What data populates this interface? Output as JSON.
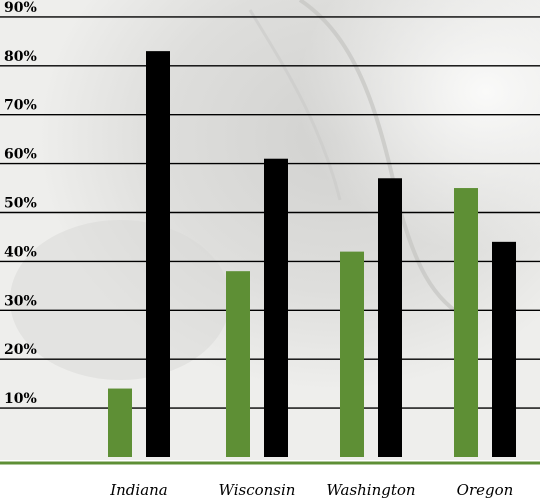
{
  "chart_data": {
    "type": "bar",
    "title": "",
    "xlabel": "",
    "ylabel": "",
    "categories": [
      "Indiana",
      "Wisconsin",
      "Washington",
      "Oregon"
    ],
    "series": [
      {
        "color": "#5e8f35",
        "values": [
          14,
          38,
          42,
          55
        ]
      },
      {
        "color": "#000000",
        "values": [
          83,
          61,
          57,
          44
        ]
      }
    ],
    "y_ticks": [
      "10%",
      "20%",
      "30%",
      "40%",
      "50%",
      "60%",
      "70%",
      "80%",
      "90%"
    ],
    "y_tick_values": [
      10,
      20,
      30,
      40,
      50,
      60,
      70,
      80,
      90
    ],
    "ylim": [
      0,
      90
    ],
    "grid": true,
    "legend": "none",
    "baseline_color": "#5e8f35",
    "background": "grayscale photograph"
  }
}
